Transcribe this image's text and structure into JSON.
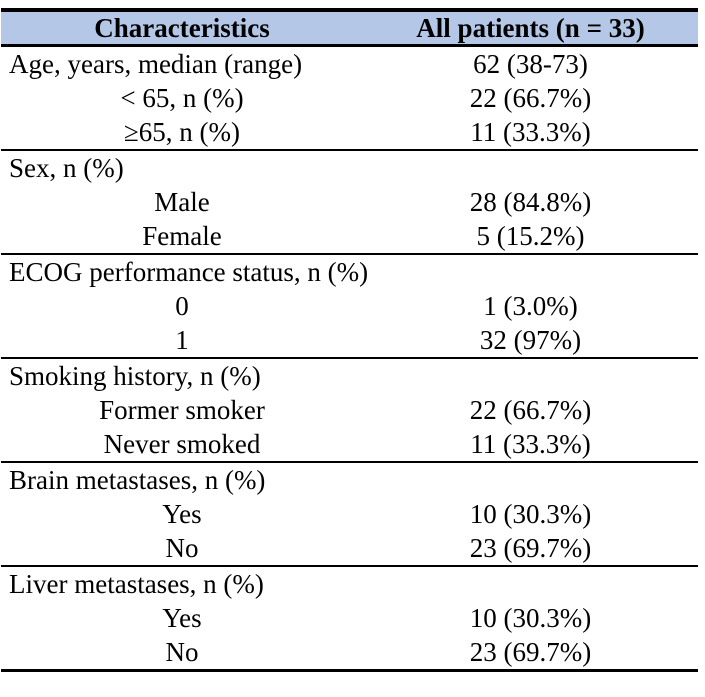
{
  "page": {
    "background": "#ffffff",
    "header_bg": "#b4c7e7",
    "border_color": "#000000"
  },
  "table": {
    "header": {
      "characteristics": "Characteristics",
      "all_patients": "All patients (n = 33)"
    },
    "sections": [
      {
        "rows": [
          {
            "label": "Age, years, median (range)",
            "value": "62 (38-73)",
            "style": "category"
          },
          {
            "label": "< 65, n (%)",
            "value": "22 (66.7%)",
            "style": "sub"
          },
          {
            "label": "≥65, n (%)",
            "value": "11 (33.3%)",
            "style": "sub"
          }
        ]
      },
      {
        "rows": [
          {
            "label": "Sex, n (%)",
            "value": "",
            "style": "category"
          },
          {
            "label": "Male",
            "value": "28 (84.8%)",
            "style": "sub"
          },
          {
            "label": "Female",
            "value": "5 (15.2%)",
            "style": "sub"
          }
        ]
      },
      {
        "rows": [
          {
            "label": "ECOG performance status, n (%)",
            "value": "",
            "style": "category"
          },
          {
            "label": "0",
            "value": "1 (3.0%)",
            "style": "sub"
          },
          {
            "label": "1",
            "value": "32 (97%)",
            "style": "sub"
          }
        ]
      },
      {
        "rows": [
          {
            "label": "Smoking history, n (%)",
            "value": "",
            "style": "category"
          },
          {
            "label": "Former smoker",
            "value": "22 (66.7%)",
            "style": "sub"
          },
          {
            "label": "Never smoked",
            "value": "11 (33.3%)",
            "style": "sub"
          }
        ]
      },
      {
        "rows": [
          {
            "label": "Brain metastases, n (%)",
            "value": "",
            "style": "category"
          },
          {
            "label": "Yes",
            "value": "10 (30.3%)",
            "style": "sub"
          },
          {
            "label": "No",
            "value": "23 (69.7%)",
            "style": "sub"
          }
        ]
      },
      {
        "rows": [
          {
            "label": "Liver metastases, n (%)",
            "value": "",
            "style": "category"
          },
          {
            "label": "Yes",
            "value": "10 (30.3%)",
            "style": "sub"
          },
          {
            "label": "No",
            "value": "23 (69.7%)",
            "style": "sub"
          }
        ]
      }
    ]
  }
}
